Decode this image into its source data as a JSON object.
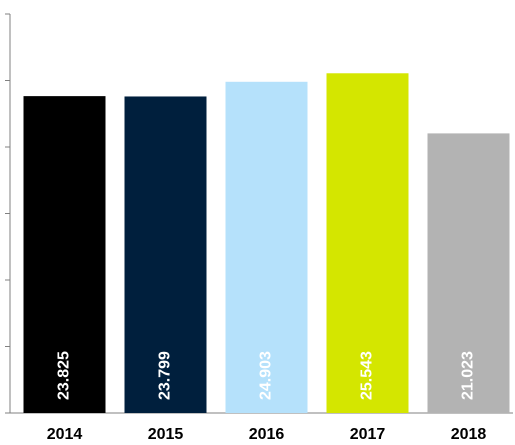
{
  "chart_data": {
    "type": "bar",
    "categories": [
      "2014",
      "2015",
      "2016",
      "2017",
      "2018"
    ],
    "values": [
      23.825,
      23.799,
      24.903,
      25.543,
      21.023
    ],
    "colors": [
      "#000000",
      "#001f3d",
      "#b5e1fb",
      "#d4e600",
      "#b3b3b3"
    ],
    "ylim": [
      0,
      30
    ],
    "yticks": [
      0,
      5,
      10,
      15,
      20,
      25,
      30
    ],
    "grid": false,
    "data_labels": true
  }
}
